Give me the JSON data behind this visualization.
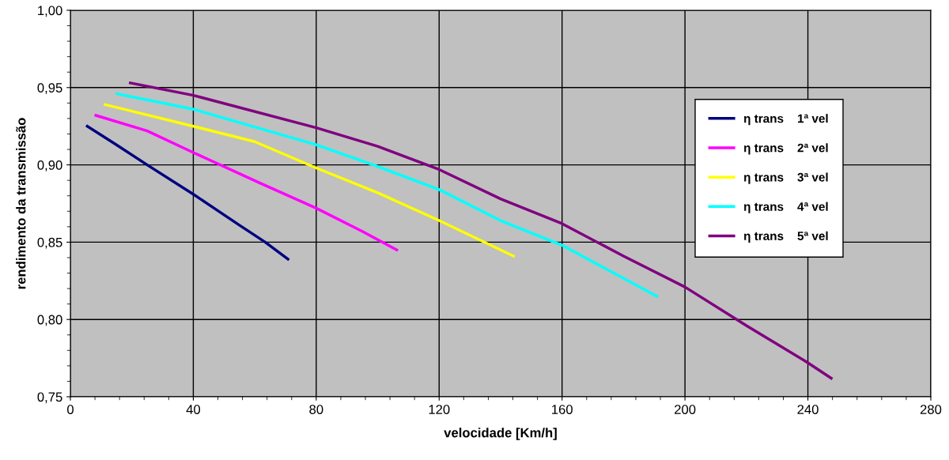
{
  "chart_data": {
    "type": "line",
    "xlabel": "velocidade [Km/h]",
    "ylabel": "rendimento da transmissão",
    "xlim": [
      0,
      280
    ],
    "xticks": [
      0,
      40,
      80,
      120,
      160,
      200,
      240,
      280
    ],
    "ylim": [
      0.75,
      1.0
    ],
    "yticks": [
      {
        "value": 0.75,
        "label": "0,75"
      },
      {
        "value": 0.8,
        "label": "0,80"
      },
      {
        "value": 0.85,
        "label": "0,85"
      },
      {
        "value": 0.9,
        "label": "0,90"
      },
      {
        "value": 0.95,
        "label": "0,95"
      },
      {
        "value": 1.0,
        "label": "1,00"
      }
    ],
    "grid": true,
    "legend": "top right",
    "marker": "none",
    "line_style": "solid",
    "series": [
      {
        "name": "η trans    1ª vel",
        "color": "#000080",
        "x": [
          5.5,
          15,
          25,
          40,
          55,
          63.4,
          70.8
        ],
        "values": [
          0.925,
          0.913,
          0.9,
          0.881,
          0.861,
          0.85,
          0.839
        ]
      },
      {
        "name": "η trans    2ª vel",
        "color": "#ff00ff",
        "x": [
          8.3,
          25,
          40,
          62,
          80,
          95,
          106.2
        ],
        "values": [
          0.932,
          0.922,
          0.908,
          0.888,
          0.872,
          0.857,
          0.845
        ]
      },
      {
        "name": "η trans    3ª vel",
        "color": "#ffff00",
        "x": [
          11.3,
          40,
          60,
          80,
          100,
          120,
          144.2
        ],
        "values": [
          0.939,
          0.925,
          0.915,
          0.898,
          0.882,
          0.864,
          0.841
        ]
      },
      {
        "name": "η trans    4ª vel",
        "color": "#00ffff",
        "x": [
          15.2,
          40,
          80,
          100,
          120,
          140,
          160,
          190.9
        ],
        "values": [
          0.946,
          0.936,
          0.913,
          0.899,
          0.884,
          0.864,
          0.848,
          0.815
        ]
      },
      {
        "name": "η trans    5ª vel",
        "color": "#800080",
        "x": [
          19.5,
          40,
          80,
          100,
          120,
          140,
          160,
          180,
          200,
          220,
          240,
          247.6
        ],
        "values": [
          0.953,
          0.945,
          0.924,
          0.912,
          0.897,
          0.878,
          0.862,
          0.841,
          0.821,
          0.796,
          0.772,
          0.762
        ]
      }
    ]
  }
}
